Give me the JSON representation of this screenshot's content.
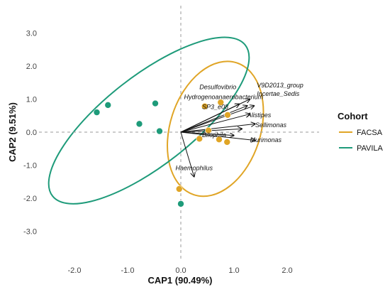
{
  "chart_data": {
    "type": "scatter",
    "title": "",
    "xlabel": "CAP1 (90.49%)",
    "ylabel": "CAP2 (9.51%)",
    "xlim": [
      -2.6,
      2.6
    ],
    "ylim": [
      -3.3,
      3.3
    ],
    "x_ticks": [
      -2.0,
      -1.0,
      0.0,
      1.0,
      2.0
    ],
    "x_tick_labels": [
      "-2.0",
      "-1.0",
      "0.0",
      "1.0",
      "2.0"
    ],
    "y_ticks": [
      3.0,
      2.0,
      1.0,
      0.0,
      -1.0,
      -2.0,
      -3.0
    ],
    "y_tick_labels": [
      "3.0",
      "2.0",
      "1.0",
      "0.0",
      "-1.0",
      "-2.0",
      "-3.0"
    ],
    "grid": false,
    "zero_reference_lines": true,
    "legend": {
      "title": "Cohort",
      "position": "right",
      "entries": [
        {
          "name": "FACSA",
          "color": "#E0A526"
        },
        {
          "name": "PAVILA",
          "color": "#1E9B7A"
        }
      ]
    },
    "series": [
      {
        "name": "FACSA",
        "color": "#E0A526",
        "points": [
          {
            "x": 0.45,
            "y": 0.78
          },
          {
            "x": 0.75,
            "y": 0.9
          },
          {
            "x": 0.88,
            "y": 0.52
          },
          {
            "x": 0.52,
            "y": 0.05
          },
          {
            "x": 0.72,
            "y": -0.22
          },
          {
            "x": 0.87,
            "y": -0.3
          },
          {
            "x": 0.35,
            "y": -0.2
          },
          {
            "x": -0.03,
            "y": -1.72
          }
        ],
        "ellipse": {
          "cx": 0.65,
          "cy": 0.1,
          "rx": 0.85,
          "ry": 2.1,
          "rotation_deg": 18
        }
      },
      {
        "name": "PAVILA",
        "color": "#1E9B7A",
        "points": [
          {
            "x": -1.58,
            "y": 0.6
          },
          {
            "x": -1.37,
            "y": 0.82
          },
          {
            "x": -0.78,
            "y": 0.25
          },
          {
            "x": -0.48,
            "y": 0.87
          },
          {
            "x": -0.4,
            "y": 0.03
          },
          {
            "x": 0.0,
            "y": -2.17
          }
        ],
        "ellipse": {
          "cx": -0.6,
          "cy": 0.35,
          "rx": 2.3,
          "ry": 1.35,
          "rotation_deg": -38
        }
      }
    ],
    "biplot_arrows": [
      {
        "label": "V9D2013_group",
        "x": 1.3,
        "y": 1.0,
        "label_x": 1.43,
        "label_y": 1.35
      },
      {
        "label": "Desulfovibrio",
        "x": 1.1,
        "y": 0.85,
        "label_x": 0.35,
        "label_y": 1.3
      },
      {
        "label": "Hydrogenoanaerobacterium",
        "x": 1.25,
        "y": 0.8,
        "label_x": 0.06,
        "label_y": 1.0
      },
      {
        "label": "Incertae_Sedis",
        "x": 1.38,
        "y": 0.8,
        "label_x": 1.43,
        "label_y": 1.1
      },
      {
        "label": "Alistipes",
        "x": 1.3,
        "y": 0.55,
        "label_x": 1.25,
        "label_y": 0.45
      },
      {
        "label": "Sellimonas",
        "x": 1.4,
        "y": 0.25,
        "label_x": 1.4,
        "label_y": 0.15
      },
      {
        "label": "SP3_e08",
        "x": 1.15,
        "y": 0.1,
        "label_x": 0.4,
        "label_y": 0.7
      },
      {
        "label": "Bilophila",
        "x": 1.0,
        "y": -0.1,
        "label_x": 0.4,
        "label_y": -0.15
      },
      {
        "label": "Murimonas",
        "x": 1.4,
        "y": -0.25,
        "label_x": 1.3,
        "label_y": -0.3
      },
      {
        "label": "Haemophilus",
        "x": 0.25,
        "y": -1.35,
        "label_x": -0.1,
        "label_y": -1.15
      }
    ]
  }
}
